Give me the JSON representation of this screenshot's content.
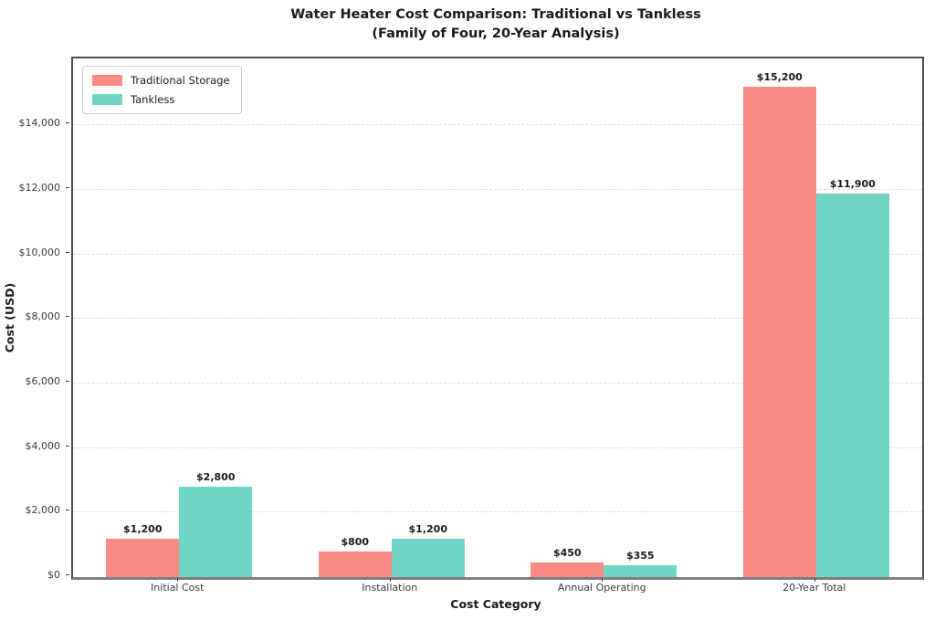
{
  "figure": {
    "background_color": "#ffffff"
  },
  "chart_data": {
    "type": "bar",
    "title": "Water Heater Cost Comparison: Traditional vs Tankless",
    "subtitle": "(Family of Four, 20-Year Analysis)",
    "xlabel": "Cost Category",
    "ylabel": "Cost (USD)",
    "categories": [
      "Initial Cost",
      "Installation",
      "Annual Operating",
      "20-Year Total"
    ],
    "series": [
      {
        "name": "Traditional Storage",
        "color": "#FA8A84",
        "values": [
          1200,
          800,
          450,
          15200
        ],
        "value_labels": [
          "$1,200",
          "$800",
          "$450",
          "$15,200"
        ]
      },
      {
        "name": "Tankless",
        "color": "#72D6C7",
        "values": [
          2800,
          1200,
          355,
          11900
        ],
        "value_labels": [
          "$2,800",
          "$1,200",
          "$355",
          "$11,900"
        ]
      }
    ],
    "ylim": [
      0,
      16080
    ],
    "yticks": {
      "values": [
        0,
        2000,
        4000,
        6000,
        8000,
        10000,
        12000,
        14000
      ],
      "labels": [
        "$0",
        "$2,000",
        "$4,000",
        "$6,000",
        "$8,000",
        "$10,000",
        "$12,000",
        "$14,000"
      ]
    },
    "grid": "horizontal-dashed",
    "grid_color": "#e0e0e0",
    "legend_position": "upper-left"
  }
}
